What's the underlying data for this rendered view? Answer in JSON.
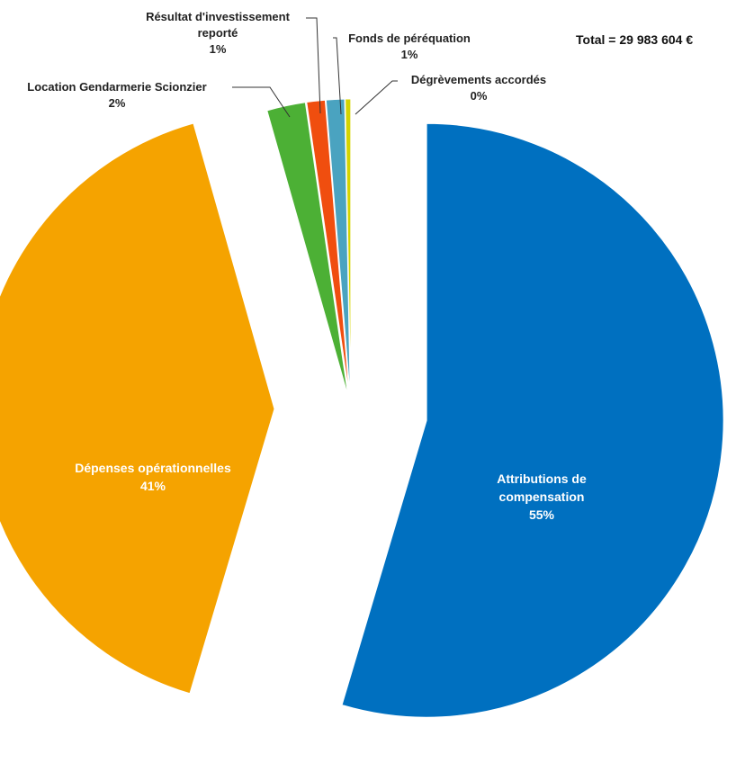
{
  "chart_data": {
    "type": "pie",
    "annotation": "Total = 29 983 604 €",
    "categories": [
      "Attributions de compensation",
      "Dépenses opérationnelles",
      "Location Gendarmerie Scionzier",
      "Résultat d'investissement reporté",
      "Fonds de péréquation",
      "Dégrèvements accordés"
    ],
    "values": [
      54.6,
      41.0,
      2.1,
      1.0,
      1.0,
      0.3
    ],
    "value_labels": [
      "55%",
      "41%",
      "2%",
      "1%",
      "1%",
      "0%"
    ],
    "colors": [
      "#0070c0",
      "#f5a300",
      "#4cb035",
      "#f04e0f",
      "#4aa3c0",
      "#d4d400"
    ]
  }
}
